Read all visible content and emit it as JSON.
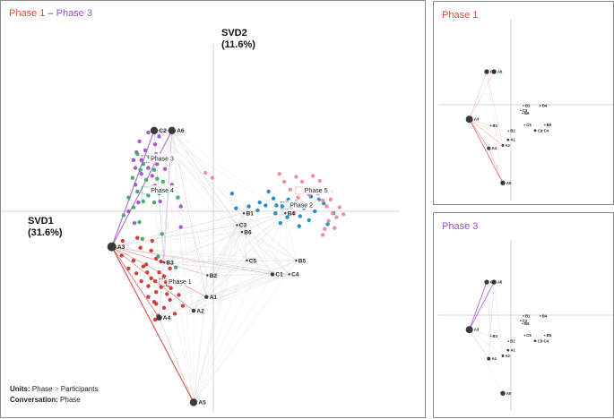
{
  "main": {
    "title_a": "Phase 1",
    "title_sep": " – ",
    "title_b": "Phase 3",
    "svd1_label": "SVD1",
    "svd1_pct": "(31.6%)",
    "svd2_label": "SVD2",
    "svd2_pct": "(11.6%)",
    "units_key": "Units:",
    "units_val": "Phase",
    "units_arrow": ">",
    "units_val2": "Participants",
    "conv_key": "Conversation:",
    "conv_val": "Phase"
  },
  "phase1_panel": {
    "title": "Phase 1"
  },
  "phase3_panel": {
    "title": "Phase 3"
  },
  "colors": {
    "phase1": "#d0352d",
    "phase2": "#1a8ac4",
    "phase3": "#a050c8",
    "phase4": "#3aaa62",
    "phase5": "#f08a96",
    "node": "#3a3a3a",
    "title_red": "#e04a3f",
    "title_purple": "#a050c8"
  },
  "chart_data": {
    "type": "scatter",
    "xlabel": "SVD1 (31.6%)",
    "ylabel": "SVD2 (11.6%)",
    "xlim": [
      -2.0,
      2.0
    ],
    "ylim": [
      -2.0,
      2.0
    ],
    "phase_labels": [
      {
        "text": "Phase 1",
        "x": -0.5,
        "y": -0.72
      },
      {
        "text": "Phase 2",
        "x": 0.73,
        "y": 0.06
      },
      {
        "text": "Phase 3",
        "x": -0.68,
        "y": 0.53
      },
      {
        "text": "Phase 4",
        "x": -0.68,
        "y": 0.21
      },
      {
        "text": "Phase 5",
        "x": 0.88,
        "y": 0.21
      }
    ],
    "nodes": [
      {
        "name": "A1",
        "x": -0.07,
        "y": -0.87,
        "size": 2
      },
      {
        "name": "A2",
        "x": -0.2,
        "y": -1.01,
        "size": 2
      },
      {
        "name": "A3",
        "x": -1.03,
        "y": -0.36,
        "size": 5
      },
      {
        "name": "A4",
        "x": -0.55,
        "y": -1.08,
        "size": 3
      },
      {
        "name": "A5",
        "x": -0.2,
        "y": -1.94,
        "size": 4
      },
      {
        "name": "A6",
        "x": -0.42,
        "y": 0.82,
        "size": 4
      },
      {
        "name": "B1",
        "x": 0.31,
        "y": -0.02,
        "size": 1
      },
      {
        "name": "B2",
        "x": -0.06,
        "y": -0.65,
        "size": 1
      },
      {
        "name": "B3",
        "x": -0.5,
        "y": -0.52,
        "size": 1
      },
      {
        "name": "B4",
        "x": 0.73,
        "y": -0.02,
        "size": 1
      },
      {
        "name": "B5",
        "x": 0.84,
        "y": -0.5,
        "size": 1
      },
      {
        "name": "B6",
        "x": 0.29,
        "y": -0.21,
        "size": 1
      },
      {
        "name": "C1",
        "x": 0.6,
        "y": -0.64,
        "size": 2
      },
      {
        "name": "C2",
        "x": -0.6,
        "y": 0.82,
        "size": 4
      },
      {
        "name": "C3",
        "x": 0.24,
        "y": -0.14,
        "size": 1
      },
      {
        "name": "C4",
        "x": 0.77,
        "y": -0.64,
        "size": 1
      },
      {
        "name": "C5",
        "x": 0.34,
        "y": -0.5,
        "size": 1
      }
    ],
    "series": [
      {
        "name": "Phase 1",
        "points": [
          [
            -0.92,
            -0.3
          ],
          [
            -0.77,
            -0.27
          ],
          [
            -0.62,
            -0.3
          ],
          [
            -0.74,
            -0.37
          ],
          [
            -0.63,
            -0.4
          ],
          [
            -0.93,
            -0.45
          ],
          [
            -0.58,
            -0.48
          ],
          [
            -0.81,
            -0.5
          ],
          [
            -0.53,
            -0.51
          ],
          [
            -0.71,
            -0.56
          ],
          [
            -0.86,
            -0.58
          ],
          [
            -0.44,
            -0.58
          ],
          [
            -0.67,
            -0.62
          ],
          [
            -0.55,
            -0.62
          ],
          [
            -0.78,
            -0.63
          ],
          [
            -0.5,
            -0.66
          ],
          [
            -0.63,
            -0.68
          ],
          [
            -0.73,
            -0.71
          ],
          [
            -0.59,
            -0.71
          ],
          [
            -0.48,
            -0.72
          ],
          [
            -0.66,
            -0.76
          ],
          [
            -0.53,
            -0.77
          ],
          [
            -0.43,
            -0.78
          ],
          [
            -0.58,
            -0.82
          ],
          [
            -0.47,
            -0.84
          ],
          [
            -0.35,
            -0.85
          ],
          [
            -0.66,
            -0.87
          ],
          [
            -0.44,
            -0.9
          ],
          [
            -0.58,
            -0.94
          ],
          [
            -0.31,
            -0.96
          ],
          [
            -0.5,
            -0.98
          ],
          [
            -0.56,
            -1.06
          ],
          [
            -0.39,
            -1.04
          ],
          [
            -0.59,
            -1.1
          ],
          [
            -0.46,
            -0.75
          ],
          [
            -0.36,
            -0.7
          ],
          [
            -0.68,
            -0.54
          ],
          [
            -0.6,
            -0.92
          ]
        ]
      },
      {
        "name": "Phase 2",
        "points": [
          [
            0.19,
            0.18
          ],
          [
            0.36,
            0.05
          ],
          [
            0.23,
            0.03
          ],
          [
            0.45,
            0.01
          ],
          [
            0.53,
            0.06
          ],
          [
            0.61,
            0.13
          ],
          [
            0.63,
            -0.02
          ],
          [
            0.7,
            0.05
          ],
          [
            0.75,
            -0.06
          ],
          [
            0.79,
            0.04
          ],
          [
            0.84,
            0.1
          ],
          [
            0.88,
            -0.05
          ],
          [
            0.92,
            0.03
          ],
          [
            0.97,
            -0.09
          ],
          [
            1.03,
            0.0
          ],
          [
            1.07,
            0.12
          ],
          [
            1.12,
            0.08
          ],
          [
            1.16,
            -0.13
          ],
          [
            1.22,
            -0.02
          ],
          [
            0.68,
            -0.12
          ],
          [
            0.56,
            0.2
          ],
          [
            0.99,
            0.15
          ],
          [
            0.87,
            -0.15
          ],
          [
            0.76,
            0.12
          ],
          [
            0.47,
            0.09
          ],
          [
            0.64,
            0.06
          ]
        ]
      },
      {
        "name": "Phase 3",
        "points": [
          [
            -0.66,
            0.8
          ],
          [
            -0.55,
            0.76
          ],
          [
            -0.59,
            0.68
          ],
          [
            -0.75,
            0.71
          ],
          [
            -0.69,
            0.62
          ],
          [
            -0.58,
            0.58
          ],
          [
            -0.78,
            0.6
          ],
          [
            -0.63,
            0.52
          ],
          [
            -0.73,
            0.52
          ],
          [
            -0.57,
            0.48
          ],
          [
            -0.66,
            0.44
          ],
          [
            -0.79,
            0.44
          ],
          [
            -0.73,
            0.38
          ],
          [
            -0.62,
            0.36
          ],
          [
            -0.59,
            0.26
          ],
          [
            -0.79,
            0.27
          ],
          [
            -0.76,
            0.09
          ],
          [
            -0.86,
            0.0
          ],
          [
            -0.8,
            -0.12
          ],
          [
            -0.54,
            0.1
          ],
          [
            -0.33,
            0.05
          ],
          [
            -0.33,
            -0.16
          ],
          [
            -0.49,
            0.43
          ],
          [
            -0.81,
            0.52
          ],
          [
            -0.42,
            0.27
          ]
        ]
      },
      {
        "name": "Phase 4",
        "points": [
          [
            -0.77,
            0.58
          ],
          [
            -0.65,
            0.55
          ],
          [
            -0.71,
            0.48
          ],
          [
            -0.6,
            0.42
          ],
          [
            -0.74,
            0.42
          ],
          [
            -0.82,
            0.34
          ],
          [
            -0.68,
            0.32
          ],
          [
            -0.57,
            0.33
          ],
          [
            -0.77,
            0.2
          ],
          [
            -0.66,
            0.16
          ],
          [
            -0.55,
            0.18
          ],
          [
            -0.46,
            0.19
          ],
          [
            -0.86,
            0.14
          ],
          [
            -0.71,
            0.1
          ],
          [
            -0.6,
            0.09
          ],
          [
            -0.91,
            -0.04
          ],
          [
            -0.75,
            -0.11
          ],
          [
            -0.72,
            -0.28
          ],
          [
            -0.52,
            -0.23
          ],
          [
            -0.56,
            -0.46
          ],
          [
            -0.38,
            -0.57
          ],
          [
            -0.36,
            0.14
          ],
          [
            -0.81,
            0.04
          ],
          [
            -0.62,
            0.25
          ],
          [
            -0.51,
            0.3
          ]
        ]
      },
      {
        "name": "Phase 5",
        "points": [
          [
            -0.08,
            0.39
          ],
          [
            -0.01,
            0.34
          ],
          [
            0.67,
            0.38
          ],
          [
            0.72,
            0.3
          ],
          [
            0.84,
            0.35
          ],
          [
            0.9,
            0.3
          ],
          [
            1.01,
            0.36
          ],
          [
            1.08,
            0.31
          ],
          [
            0.78,
            0.22
          ],
          [
            0.97,
            0.17
          ],
          [
            1.06,
            0.18
          ],
          [
            1.11,
            0.11
          ],
          [
            1.15,
            0.05
          ],
          [
            1.19,
            0.12
          ],
          [
            1.21,
            -0.02
          ],
          [
            1.25,
            -0.06
          ],
          [
            1.28,
            0.04
          ],
          [
            1.32,
            -0.03
          ],
          [
            1.17,
            -0.1
          ],
          [
            1.13,
            -0.18
          ],
          [
            1.23,
            -0.17
          ],
          [
            1.11,
            -0.24
          ],
          [
            0.93,
            0.07
          ],
          [
            0.82,
            -0.02
          ],
          [
            1.0,
            0.05
          ],
          [
            1.2,
            0.2
          ],
          [
            0.86,
            0.14
          ]
        ]
      }
    ]
  }
}
